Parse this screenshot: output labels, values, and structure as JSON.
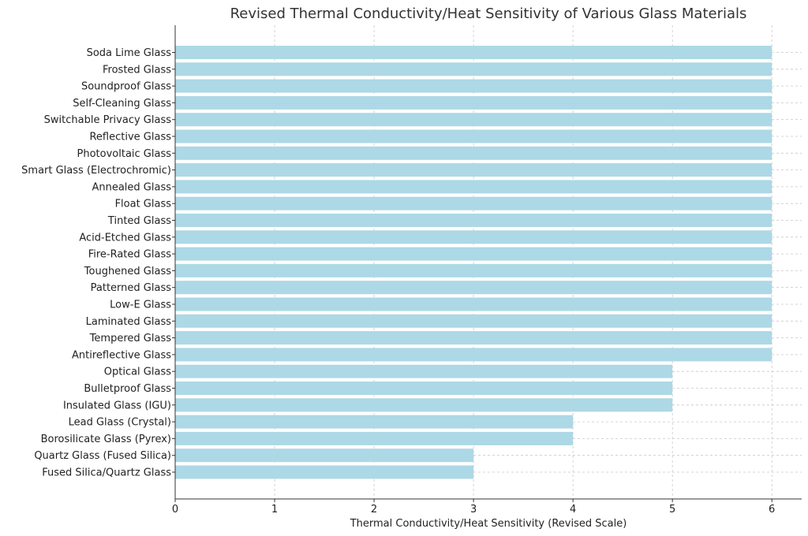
{
  "chart_data": {
    "type": "bar",
    "orientation": "horizontal",
    "title": "Revised Thermal Conductivity/Heat Sensitivity of Various Glass Materials",
    "xlabel": "Thermal Conductivity/Heat Sensitivity (Revised Scale)",
    "ylabel": "",
    "xlim": [
      0,
      6.3
    ],
    "xticks": [
      "0",
      "1",
      "2",
      "3",
      "4",
      "5",
      "6"
    ],
    "grid": true,
    "bar_color": "#add8e6",
    "categories": [
      "Soda Lime Glass",
      "Frosted Glass",
      "Soundproof Glass",
      "Self-Cleaning Glass",
      "Switchable Privacy Glass",
      "Reflective Glass",
      "Photovoltaic Glass",
      "Smart Glass (Electrochromic)",
      "Annealed Glass",
      "Float Glass",
      "Tinted Glass",
      "Acid-Etched Glass",
      "Fire-Rated Glass",
      "Toughened Glass",
      "Patterned Glass",
      "Low-E Glass",
      "Laminated Glass",
      "Tempered Glass",
      "Antireflective Glass",
      "Optical Glass",
      "Bulletproof Glass",
      "Insulated Glass (IGU)",
      "Lead Glass (Crystal)",
      "Borosilicate Glass (Pyrex)",
      "Quartz Glass (Fused Silica)",
      "Fused Silica/Quartz Glass"
    ],
    "values": [
      6,
      6,
      6,
      6,
      6,
      6,
      6,
      6,
      6,
      6,
      6,
      6,
      6,
      6,
      6,
      6,
      6,
      6,
      6,
      5,
      5,
      5,
      4,
      4,
      3,
      3
    ]
  }
}
